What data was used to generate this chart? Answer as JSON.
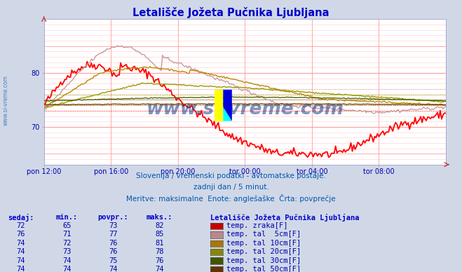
{
  "title": "Letališče Jožeta Pučnika Ljubljana",
  "title_color": "#0000cc",
  "bg_color": "#d0d8e8",
  "plot_bg_color": "#ffffff",
  "grid_color_major": "#ff8888",
  "grid_color_minor": "#ffcccc",
  "tick_color": "#0000aa",
  "ylim": [
    63,
    90
  ],
  "xlim": [
    0,
    288
  ],
  "yticks": [
    70,
    80
  ],
  "xtick_labels": [
    "pon 12:00",
    "pon 16:00",
    "pon 20:00",
    "tor 00:00",
    "tor 04:00",
    "tor 08:00"
  ],
  "xtick_positions": [
    0,
    48,
    96,
    144,
    192,
    240
  ],
  "subtitle_line1": "Slovenija / vremenski podatki - avtomatske postaje.",
  "subtitle_line2": "zadnji dan / 5 minut.",
  "subtitle_line3": "Meritve: maksimalne  Enote: anglešaške  Črta: povprečje",
  "subtitle_color": "#0055aa",
  "watermark": "www.si-vreme.com",
  "watermark_color": "#1a3a8a",
  "sidewater_color": "#3366aa",
  "series": [
    {
      "name": "temp. zraka[F]",
      "color": "#ff0000",
      "sedaj": 72,
      "min": 65,
      "povpr": 73,
      "maks": 82,
      "legend_color": "#cc0000"
    },
    {
      "name": "temp. tal  5cm[F]",
      "color": "#cc9999",
      "sedaj": 76,
      "min": 71,
      "povpr": 77,
      "maks": 85,
      "legend_color": "#bb8888"
    },
    {
      "name": "temp. tal 10cm[F]",
      "color": "#bb8800",
      "sedaj": 74,
      "min": 72,
      "povpr": 76,
      "maks": 81,
      "legend_color": "#aa7700"
    },
    {
      "name": "temp. tal 20cm[F]",
      "color": "#999900",
      "sedaj": 74,
      "min": 73,
      "povpr": 76,
      "maks": 78,
      "legend_color": "#888800"
    },
    {
      "name": "temp. tal 30cm[F]",
      "color": "#556600",
      "sedaj": 74,
      "min": 74,
      "povpr": 75,
      "maks": 76,
      "legend_color": "#445500"
    },
    {
      "name": "temp. tal 50cm[F]",
      "color": "#774400",
      "sedaj": 74,
      "min": 74,
      "povpr": 74,
      "maks": 74,
      "legend_color": "#663300"
    }
  ],
  "table_headers": [
    "sedaj:",
    "min.:",
    "povpr.:",
    "maks.:"
  ],
  "table_header_color": "#0000cc",
  "table_data_color": "#0000aa",
  "station_label": "Letališče Jožeta Pučnika Ljubljana",
  "station_label_color": "#0000cc"
}
